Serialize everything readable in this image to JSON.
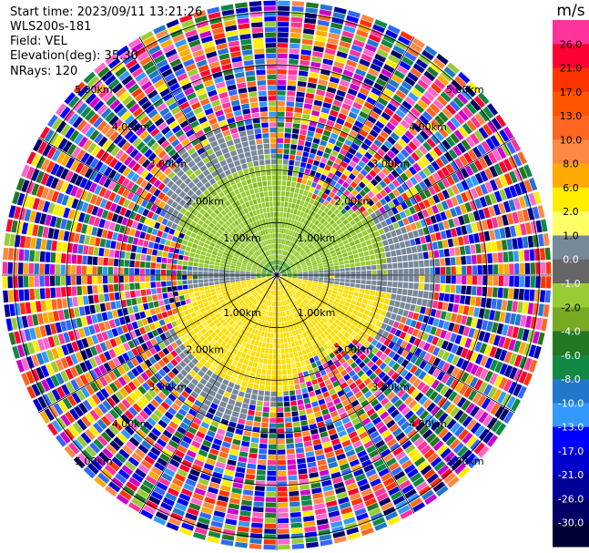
{
  "header": {
    "start_time": "Start time: 2023/09/11 13:21:26",
    "station": "WLS200s-181",
    "field": "Field: VEL",
    "elevation": "Elevation(deg): 35.30",
    "nrays": "NRays: 120"
  },
  "chart_data": {
    "type": "heatmap",
    "projection": "polar-ppi",
    "n_rays": 120,
    "grid": true,
    "range_ring_labels": [
      "1.00km",
      "2.00km",
      "3.00km",
      "4.00km",
      "5.00km"
    ],
    "colorbar": {
      "unit": "m/s",
      "ticks": [
        "26.0",
        "21.0",
        "17.0",
        "13.0",
        "10.0",
        "8.0",
        "6.0",
        "2.0",
        "1.0",
        "0.0",
        "-1.0",
        "-2.0",
        "-4.0",
        "-6.0",
        "-8.0",
        "-10.0",
        "-13.0",
        "-17.0",
        "-21.0",
        "-26.0",
        "-30.0"
      ],
      "colors": [
        "#ff3399",
        "#ff0033",
        "#ff3300",
        "#ff5500",
        "#ff6622",
        "#ff8844",
        "#ffaa00",
        "#ffee00",
        "#ffff66",
        "#778899",
        "#666666",
        "#99cc33",
        "#77aa22",
        "#227722",
        "#118844",
        "#2277cc",
        "#3399ff",
        "#0000ff",
        "#0000cc",
        "#000099",
        "#000066",
        "#000033"
      ]
    }
  }
}
